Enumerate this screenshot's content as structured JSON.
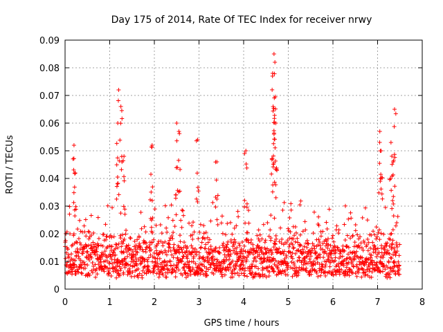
{
  "chart_data": {
    "type": "scatter",
    "title": "Day 175 of 2014, Rate Of TEC Index for receiver nrwy",
    "xlabel": "GPS time / hours",
    "ylabel": "ROTI / TECUs",
    "xlim": [
      0,
      8
    ],
    "ylim": [
      0,
      0.09
    ],
    "x_ticks": [
      "0",
      "1",
      "2",
      "3",
      "4",
      "5",
      "6",
      "7",
      "8"
    ],
    "y_ticks": [
      "0",
      "0.01",
      "0.02",
      "0.03",
      "0.04",
      "0.05",
      "0.06",
      "0.07",
      "0.08",
      "0.09"
    ],
    "grid": true,
    "marker": "+",
    "series_color": "#ff0000",
    "series": [
      {
        "name": "ROTI",
        "description": "dense band of points 0.004–0.035 TECU over 0–7.5 h, with spikes",
        "band": {
          "x_range": [
            0,
            7.5
          ],
          "y_low": 0.004,
          "y_high": 0.035,
          "typical": 0.013
        },
        "spikes": [
          {
            "x": 0.2,
            "y": 0.052
          },
          {
            "x": 0.22,
            "y": 0.042
          },
          {
            "x": 1.2,
            "y": 0.072
          },
          {
            "x": 1.25,
            "y": 0.066
          },
          {
            "x": 1.18,
            "y": 0.06
          },
          {
            "x": 1.32,
            "y": 0.048
          },
          {
            "x": 1.95,
            "y": 0.052
          },
          {
            "x": 2.5,
            "y": 0.06
          },
          {
            "x": 2.55,
            "y": 0.057
          },
          {
            "x": 2.97,
            "y": 0.054
          },
          {
            "x": 3.4,
            "y": 0.046
          },
          {
            "x": 4.05,
            "y": 0.05
          },
          {
            "x": 4.68,
            "y": 0.085
          },
          {
            "x": 4.7,
            "y": 0.082
          },
          {
            "x": 4.65,
            "y": 0.078
          },
          {
            "x": 4.66,
            "y": 0.066
          },
          {
            "x": 4.72,
            "y": 0.06
          },
          {
            "x": 4.68,
            "y": 0.056
          },
          {
            "x": 7.05,
            "y": 0.057
          },
          {
            "x": 7.08,
            "y": 0.05
          },
          {
            "x": 7.3,
            "y": 0.053
          },
          {
            "x": 7.35,
            "y": 0.046
          },
          {
            "x": 7.38,
            "y": 0.065
          }
        ]
      }
    ]
  }
}
